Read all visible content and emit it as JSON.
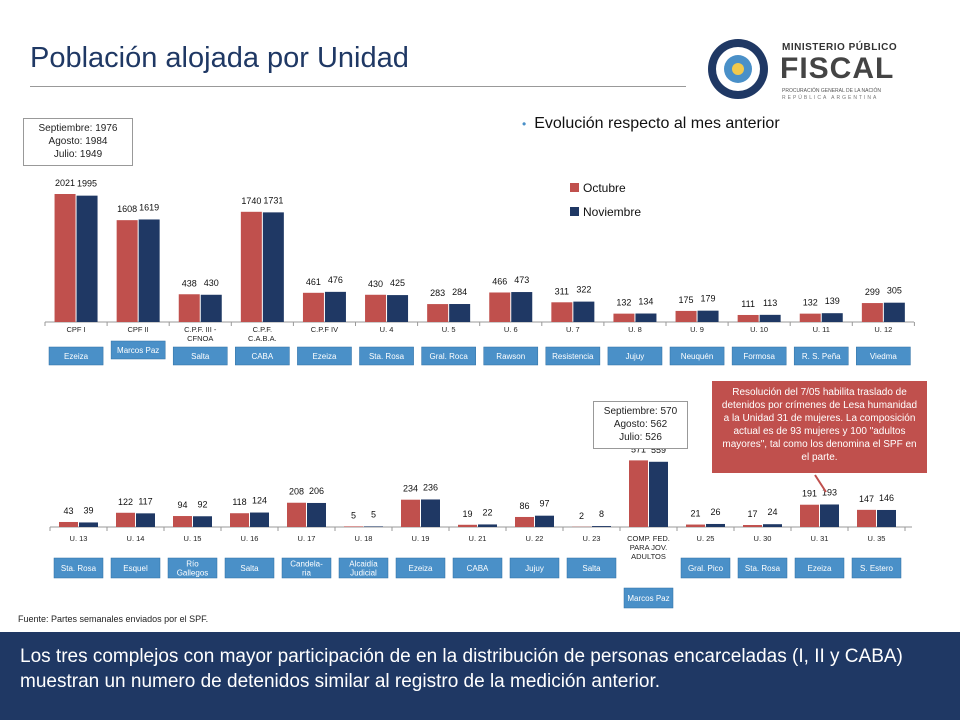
{
  "title": "Población alojada por Unidad",
  "logo": {
    "line1": "MINISTERIO PÚBLICO",
    "line2": "FISCAL",
    "line3": "PROCURACIÓN GENERAL DE LA NACIÓN",
    "line4": "REPÚBLICA ARGENTINA"
  },
  "bullet": "Evolución respecto al mes anterior",
  "box1": {
    "l1": "Septiembre: 1976",
    "l2": "Agosto: 1984",
    "l3": "Julio: 1949"
  },
  "box2": {
    "l1": "Septiembre: 570",
    "l2": "Agosto: 562",
    "l3": "Julio: 526"
  },
  "note": "Resolución del 7/05 habilita traslado de detenidos por crímenes de Lesa humanidad a la Unidad 31 de mujeres. La composición actual  es de 93 mujeres y 100 \"adultos mayores\", tal como los denomina el SPF en el parte.",
  "source": "Fuente: Partes semanales enviados por el SPF.",
  "footer": "Los tres complejos con mayor participación de en la distribución de personas encarceladas (I, II y CABA) muestran un numero de detenidos similar al registro de la medición anterior.",
  "colors": {
    "octubre": "#c0504d",
    "noviembre": "#1f3864",
    "location": "#4a90c8",
    "footer": "#1f3864"
  },
  "chart_data": [
    {
      "type": "bar",
      "categories": [
        "CPF I",
        "CPF II",
        "C.P.F. III - CFNOA",
        "C.P.F. C.A.B.A.",
        "C.P.F IV",
        "U. 4",
        "U. 5",
        "U. 6",
        "U. 7",
        "U. 8",
        "U. 9",
        "U. 10",
        "U. 11",
        "U. 12"
      ],
      "locations": [
        "Ezeiza",
        "Marcos Paz",
        "Salta",
        "CABA",
        "Ezeiza",
        "Sta. Rosa",
        "Gral. Roca",
        "Rawson",
        "Resistencia",
        "Jujuy",
        "Neuquén",
        "Formosa",
        "R. S. Peña",
        "Viedma"
      ],
      "series": [
        {
          "name": "Octubre",
          "values": [
            2021,
            1608,
            438,
            1740,
            461,
            430,
            283,
            466,
            311,
            132,
            175,
            111,
            132,
            299
          ]
        },
        {
          "name": "Noviembre",
          "values": [
            1995,
            1619,
            430,
            1731,
            476,
            425,
            284,
            473,
            322,
            134,
            179,
            113,
            139,
            305
          ]
        }
      ],
      "ylim": [
        0,
        2100
      ],
      "legend": "right"
    },
    {
      "type": "bar",
      "categories": [
        "U. 13",
        "U. 14",
        "U. 15",
        "U. 16",
        "U. 17",
        "U. 18",
        "U. 19",
        "U. 21",
        "U. 22",
        "U. 23",
        "COMP. FED. PARA JOV. ADULTOS",
        "U. 25",
        "U. 30",
        "U. 31",
        "U. 35"
      ],
      "locations": [
        "Sta. Rosa",
        "Esquel",
        "Río Gallegos",
        "Salta",
        "Candela- ria",
        "Alcaidía Judicial",
        "Ezeiza",
        "CABA",
        "Jujuy",
        "Salta",
        "Marcos Paz",
        "Gral. Pico",
        "Sta. Rosa",
        "Ezeiza",
        "S. Estero"
      ],
      "series": [
        {
          "name": "Octubre",
          "values": [
            43,
            122,
            94,
            118,
            208,
            5,
            234,
            19,
            86,
            2,
            571,
            21,
            17,
            191,
            147
          ]
        },
        {
          "name": "Noviembre",
          "values": [
            39,
            117,
            92,
            124,
            206,
            5,
            236,
            22,
            97,
            8,
            559,
            26,
            24,
            193,
            146
          ]
        }
      ],
      "ylim": [
        0,
        600
      ]
    }
  ]
}
